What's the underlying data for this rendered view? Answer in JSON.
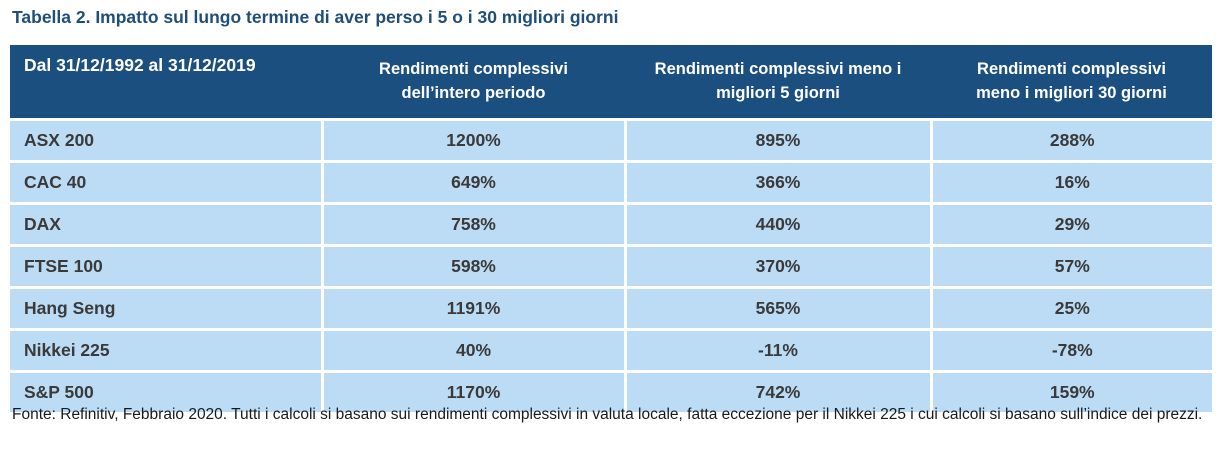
{
  "title": "Tabella 2. Impatto sul lungo termine di aver perso i 5 o i 30 migliori giorni",
  "table": {
    "headers": [
      {
        "line1": "Dal 31/12/1992 al 31/12/2019",
        "line2": ""
      },
      {
        "line1": "Rendimenti complessivi",
        "line2": "dell’intero periodo"
      },
      {
        "line1": "Rendimenti complessivi meno i",
        "line2": "migliori 5 giorni"
      },
      {
        "line1": "Rendimenti complessivi",
        "line2": "meno i migliori 30 giorni"
      }
    ],
    "rows": [
      {
        "index": "ASX 200",
        "total": "1200%",
        "minus5": "895%",
        "minus30": "288%"
      },
      {
        "index": "CAC 40",
        "total": "649%",
        "minus5": "366%",
        "minus30": "16%"
      },
      {
        "index": "DAX",
        "total": "758%",
        "minus5": "440%",
        "minus30": "29%"
      },
      {
        "index": "FTSE 100",
        "total": "598%",
        "minus5": "370%",
        "minus30": "57%"
      },
      {
        "index": "Hang Seng",
        "total": "1191%",
        "minus5": "565%",
        "minus30": "25%"
      },
      {
        "index": "Nikkei 225",
        "total": "40%",
        "minus5": "-11%",
        "minus30": "-78%"
      },
      {
        "index": "S&P 500",
        "total": "1170%",
        "minus5": "742%",
        "minus30": "159%"
      }
    ]
  },
  "source_note": "Fonte: Refinitiv, Febbraio 2020. Tutti i calcoli si basano sui rendimenti complessivi in valuta locale, fatta eccezione per il Nikkei 225 i cui calcoli si basano sull’indice dei prezzi.",
  "colors": {
    "header_bg": "#1b4f7f",
    "row_bg": "#bcdcf5",
    "title": "#1f4e79"
  }
}
